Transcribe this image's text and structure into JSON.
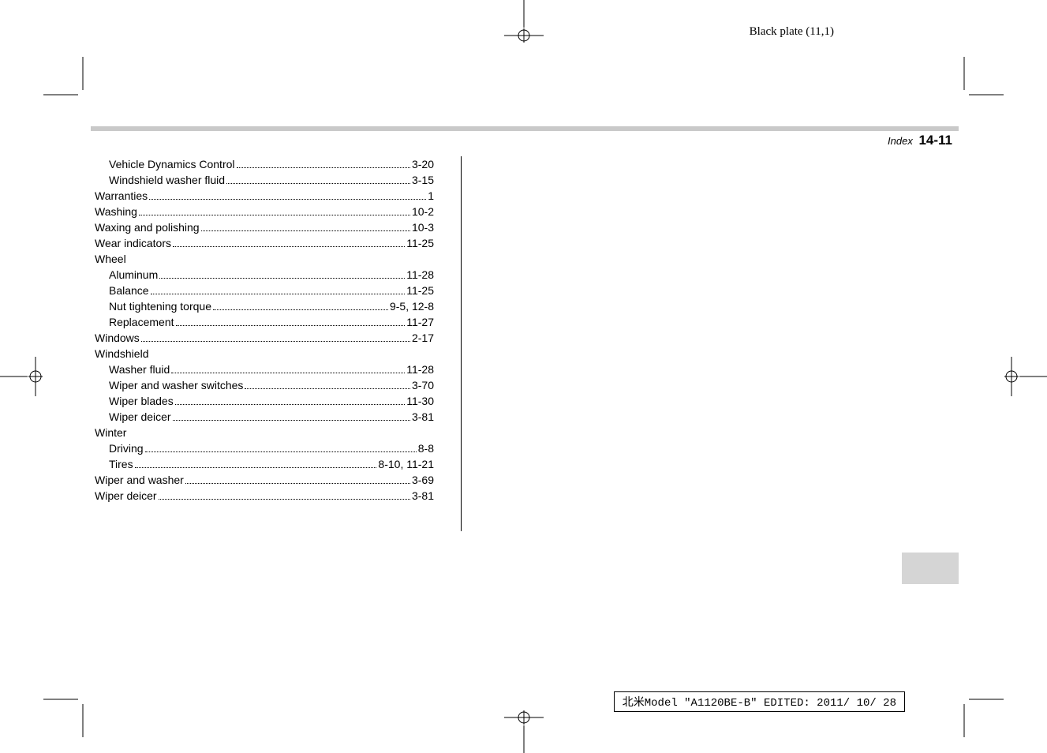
{
  "black_plate": "Black plate (11,1)",
  "header": {
    "index_label": "Index",
    "page_number": "14-11"
  },
  "entries": [
    {
      "label": "Vehicle Dynamics Control",
      "page": "3-20",
      "indent": 1
    },
    {
      "label": "Windshield washer fluid",
      "page": "3-15",
      "indent": 1
    },
    {
      "label": "Warranties",
      "page": "1",
      "indent": 0
    },
    {
      "label": "Washing",
      "page": "10-2",
      "indent": 0
    },
    {
      "label": "Waxing and polishing",
      "page": "10-3",
      "indent": 0
    },
    {
      "label": "Wear indicators",
      "page": "11-25",
      "indent": 0
    },
    {
      "label": "Wheel",
      "page": "",
      "indent": 0
    },
    {
      "label": "Aluminum",
      "page": "11-28",
      "indent": 1
    },
    {
      "label": "Balance",
      "page": "11-25",
      "indent": 1
    },
    {
      "label": "Nut tightening torque",
      "page": "9-5, 12-8",
      "indent": 1
    },
    {
      "label": "Replacement",
      "page": "11-27",
      "indent": 1
    },
    {
      "label": "Windows",
      "page": "2-17",
      "indent": 0
    },
    {
      "label": "Windshield",
      "page": "",
      "indent": 0
    },
    {
      "label": "Washer fluid",
      "page": "11-28",
      "indent": 1
    },
    {
      "label": "Wiper and washer switches",
      "page": "3-70",
      "indent": 1
    },
    {
      "label": "Wiper blades",
      "page": "11-30",
      "indent": 1
    },
    {
      "label": "Wiper deicer",
      "page": "3-81",
      "indent": 1
    },
    {
      "label": "Winter",
      "page": "",
      "indent": 0
    },
    {
      "label": "Driving",
      "page": "8-8",
      "indent": 1
    },
    {
      "label": "Tires",
      "page": "8-10, 11-21",
      "indent": 1
    },
    {
      "label": "Wiper and washer",
      "page": "3-69",
      "indent": 0
    },
    {
      "label": "Wiper deicer",
      "page": "3-81",
      "indent": 0
    }
  ],
  "footer": "北米Model \"A1120BE-B\" EDITED: 2011/ 10/ 28"
}
